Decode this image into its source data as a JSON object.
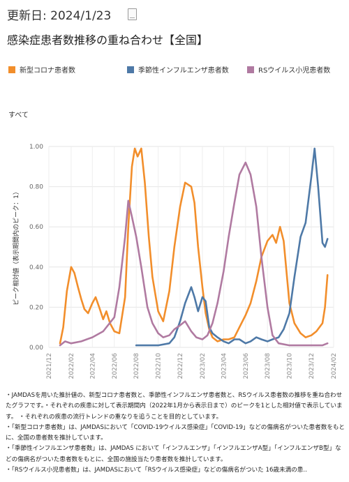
{
  "header": {
    "updated": "更新日: 2024/1/23",
    "icon": "document-icon"
  },
  "title": "感染症患者数推移の重ね合わせ【全国】",
  "legend": [
    {
      "name": "新型コロナ患者数",
      "color": "#f28e2b"
    },
    {
      "name": "季節性インフルエンザ患者数",
      "color": "#4e79a7"
    },
    {
      "name": "RSウイルス小児患者数",
      "color": "#b07aa1"
    }
  ],
  "subset_label": "すべて",
  "chart_data": {
    "type": "line",
    "ylabel": "ピーク相対値（表示期間内のピーク：1）",
    "xlabel": "",
    "ylim": [
      0,
      1.0
    ],
    "yticks": [
      "0.00",
      "0.20",
      "0.40",
      "0.60",
      "0.80",
      "1.00"
    ],
    "xlim": [
      "2021-12",
      "2024-02"
    ],
    "xticks": [
      "2021/12",
      "2022/02",
      "2022/04",
      "2022/06",
      "2022/08",
      "2022/10",
      "2022/12",
      "2023/02",
      "2023/04",
      "2023/06",
      "2023/08",
      "2023/10",
      "2023/12",
      "2024/02"
    ],
    "grid": true,
    "series": [
      {
        "name": "新型コロナ患者数",
        "color": "#f28e2b",
        "points": [
          [
            "2022-01-01",
            0.02
          ],
          [
            "2022-01-10",
            0.1
          ],
          [
            "2022-01-20",
            0.28
          ],
          [
            "2022-02-01",
            0.4
          ],
          [
            "2022-02-10",
            0.37
          ],
          [
            "2022-02-20",
            0.3
          ],
          [
            "2022-03-01",
            0.24
          ],
          [
            "2022-03-10",
            0.19
          ],
          [
            "2022-03-20",
            0.17
          ],
          [
            "2022-04-01",
            0.22
          ],
          [
            "2022-04-10",
            0.25
          ],
          [
            "2022-04-20",
            0.2
          ],
          [
            "2022-05-01",
            0.14
          ],
          [
            "2022-05-10",
            0.18
          ],
          [
            "2022-05-20",
            0.12
          ],
          [
            "2022-06-01",
            0.08
          ],
          [
            "2022-06-15",
            0.07
          ],
          [
            "2022-07-01",
            0.25
          ],
          [
            "2022-07-10",
            0.6
          ],
          [
            "2022-07-20",
            0.9
          ],
          [
            "2022-07-28",
            0.99
          ],
          [
            "2022-08-05",
            0.95
          ],
          [
            "2022-08-15",
            0.99
          ],
          [
            "2022-08-25",
            0.82
          ],
          [
            "2022-09-05",
            0.55
          ],
          [
            "2022-09-15",
            0.35
          ],
          [
            "2022-10-01",
            0.18
          ],
          [
            "2022-10-15",
            0.13
          ],
          [
            "2022-11-01",
            0.28
          ],
          [
            "2022-11-15",
            0.5
          ],
          [
            "2022-12-01",
            0.7
          ],
          [
            "2022-12-15",
            0.82
          ],
          [
            "2023-01-01",
            0.8
          ],
          [
            "2023-01-10",
            0.72
          ],
          [
            "2023-01-20",
            0.5
          ],
          [
            "2023-02-01",
            0.3
          ],
          [
            "2023-02-10",
            0.17
          ],
          [
            "2023-02-20",
            0.09
          ],
          [
            "2023-03-01",
            0.05
          ],
          [
            "2023-03-15",
            0.03
          ],
          [
            "2023-04-01",
            0.04
          ],
          [
            "2023-04-15",
            0.04
          ],
          [
            "2023-05-01",
            0.05
          ],
          [
            "2023-05-15",
            0.1
          ],
          [
            "2023-06-01",
            0.16
          ],
          [
            "2023-06-15",
            0.22
          ],
          [
            "2023-07-01",
            0.33
          ],
          [
            "2023-07-15",
            0.45
          ],
          [
            "2023-08-01",
            0.53
          ],
          [
            "2023-08-15",
            0.56
          ],
          [
            "2023-08-25",
            0.52
          ],
          [
            "2023-09-05",
            0.6
          ],
          [
            "2023-09-15",
            0.53
          ],
          [
            "2023-10-01",
            0.22
          ],
          [
            "2023-10-15",
            0.12
          ],
          [
            "2023-11-01",
            0.07
          ],
          [
            "2023-11-15",
            0.05
          ],
          [
            "2023-12-01",
            0.06
          ],
          [
            "2023-12-15",
            0.08
          ],
          [
            "2024-01-01",
            0.12
          ],
          [
            "2024-01-08",
            0.2
          ],
          [
            "2024-01-15",
            0.36
          ]
        ]
      },
      {
        "name": "季節性インフルエンザ患者数",
        "color": "#4e79a7",
        "points": [
          [
            "2022-08-01",
            0.01
          ],
          [
            "2022-09-01",
            0.01
          ],
          [
            "2022-10-01",
            0.01
          ],
          [
            "2022-11-01",
            0.02
          ],
          [
            "2022-11-15",
            0.05
          ],
          [
            "2022-12-01",
            0.13
          ],
          [
            "2022-12-15",
            0.22
          ],
          [
            "2023-01-01",
            0.3
          ],
          [
            "2023-01-10",
            0.25
          ],
          [
            "2023-01-20",
            0.18
          ],
          [
            "2023-02-01",
            0.25
          ],
          [
            "2023-02-10",
            0.23
          ],
          [
            "2023-02-20",
            0.1
          ],
          [
            "2023-03-01",
            0.07
          ],
          [
            "2023-03-15",
            0.05
          ],
          [
            "2023-04-01",
            0.03
          ],
          [
            "2023-04-15",
            0.02
          ],
          [
            "2023-05-01",
            0.04
          ],
          [
            "2023-05-15",
            0.04
          ],
          [
            "2023-06-01",
            0.02
          ],
          [
            "2023-06-15",
            0.03
          ],
          [
            "2023-07-01",
            0.05
          ],
          [
            "2023-07-15",
            0.04
          ],
          [
            "2023-08-01",
            0.03
          ],
          [
            "2023-08-15",
            0.04
          ],
          [
            "2023-09-01",
            0.05
          ],
          [
            "2023-09-15",
            0.09
          ],
          [
            "2023-10-01",
            0.17
          ],
          [
            "2023-10-15",
            0.35
          ],
          [
            "2023-11-01",
            0.55
          ],
          [
            "2023-11-15",
            0.62
          ],
          [
            "2023-12-01",
            0.85
          ],
          [
            "2023-12-10",
            0.99
          ],
          [
            "2023-12-20",
            0.8
          ],
          [
            "2024-01-01",
            0.52
          ],
          [
            "2024-01-08",
            0.5
          ],
          [
            "2024-01-15",
            0.54
          ]
        ]
      },
      {
        "name": "RSウイルス小児患者数",
        "color": "#b07aa1",
        "points": [
          [
            "2022-01-01",
            0.01
          ],
          [
            "2022-01-15",
            0.03
          ],
          [
            "2022-02-01",
            0.02
          ],
          [
            "2022-03-01",
            0.03
          ],
          [
            "2022-04-01",
            0.05
          ],
          [
            "2022-05-01",
            0.08
          ],
          [
            "2022-06-01",
            0.15
          ],
          [
            "2022-06-15",
            0.3
          ],
          [
            "2022-07-01",
            0.55
          ],
          [
            "2022-07-10",
            0.73
          ],
          [
            "2022-07-20",
            0.65
          ],
          [
            "2022-08-01",
            0.55
          ],
          [
            "2022-08-15",
            0.4
          ],
          [
            "2022-09-01",
            0.2
          ],
          [
            "2022-09-15",
            0.12
          ],
          [
            "2022-10-01",
            0.07
          ],
          [
            "2022-10-15",
            0.05
          ],
          [
            "2022-11-01",
            0.06
          ],
          [
            "2022-11-15",
            0.09
          ],
          [
            "2022-12-01",
            0.11
          ],
          [
            "2022-12-15",
            0.13
          ],
          [
            "2023-01-01",
            0.08
          ],
          [
            "2023-01-15",
            0.05
          ],
          [
            "2023-02-01",
            0.04
          ],
          [
            "2023-02-15",
            0.06
          ],
          [
            "2023-03-01",
            0.12
          ],
          [
            "2023-03-15",
            0.22
          ],
          [
            "2023-04-01",
            0.38
          ],
          [
            "2023-04-15",
            0.55
          ],
          [
            "2023-05-01",
            0.72
          ],
          [
            "2023-05-15",
            0.86
          ],
          [
            "2023-06-01",
            0.92
          ],
          [
            "2023-06-15",
            0.86
          ],
          [
            "2023-07-01",
            0.7
          ],
          [
            "2023-07-15",
            0.45
          ],
          [
            "2023-08-01",
            0.2
          ],
          [
            "2023-08-15",
            0.06
          ],
          [
            "2023-09-01",
            0.02
          ],
          [
            "2023-10-01",
            0.01
          ],
          [
            "2023-11-01",
            0.01
          ],
          [
            "2023-12-01",
            0.01
          ],
          [
            "2024-01-01",
            0.01
          ],
          [
            "2024-01-15",
            0.02
          ]
        ]
      }
    ]
  },
  "notes": [
    "・JAMDASを用いた推計値の、新型コロナ患者数と、季節性インフルエンザ患者数と、RSウイルス患者数の推移を重ね合わせたグラフです。・それぞれの疾患に対して表示期間内（2022年1月から表示日まで）のピークを1とした相対値で表示しています。 ・それぞれの疾患の流行トレンドの重なりを追うことを目的としています。",
    "・「新型コロナ患者数」は、JAMDASにおいて「COVID-19ウイルス感染症」「COVID-19」などの傷病名がついた患者数をもとに、全国の患者数を推計しています。",
    "・「季節性インフルエンザ患者数」は、JAMDAS において「インフルエンザ」「インフルエンザA型」「インフルエンザB型」などの傷病名がついた患者数をもとに、全国の施設当たり患者数を推計しています。",
    "・「RSウイルス小児患者数」は、JAMDASにおいて「RSウイルス感染症」などの傷病名がついた 16歳未満の患.."
  ]
}
